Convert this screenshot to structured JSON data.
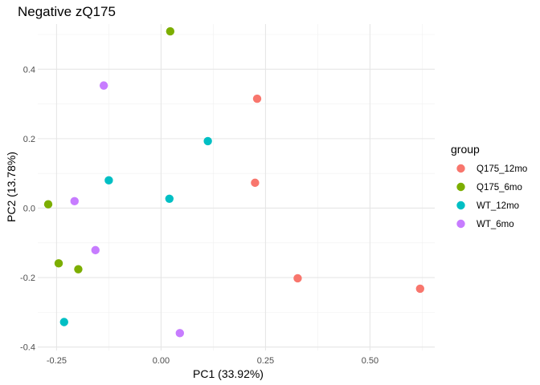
{
  "chart_data": {
    "type": "scatter",
    "title": "Negative zQ175",
    "xlabel": "PC1 (33.92%)",
    "ylabel": "PC2 (13.78%)",
    "xlim": [
      -0.295,
      0.655
    ],
    "ylim": [
      -0.41,
      0.53
    ],
    "x_ticks": [
      -0.25,
      0.0,
      0.25,
      0.5
    ],
    "x_tick_labels": [
      "-0.25",
      "0.00",
      "0.25",
      "0.50"
    ],
    "y_ticks": [
      -0.4,
      -0.2,
      0.0,
      0.2,
      0.4
    ],
    "y_tick_labels": [
      "-0.4",
      "-0.2",
      "0.0",
      "0.2",
      "0.4"
    ],
    "grid": true,
    "legend": {
      "title": "group",
      "placement": "right"
    },
    "series": [
      {
        "name": "Q175_12mo",
        "color": "#F8766D",
        "points": [
          [
            0.23,
            0.315
          ],
          [
            0.225,
            0.073
          ],
          [
            0.327,
            -0.202
          ],
          [
            0.62,
            -0.232
          ]
        ]
      },
      {
        "name": "Q175_6mo",
        "color": "#7CAE00",
        "points": [
          [
            0.022,
            0.509
          ],
          [
            -0.27,
            0.011
          ],
          [
            -0.245,
            -0.159
          ],
          [
            -0.198,
            -0.176
          ]
        ]
      },
      {
        "name": "WT_12mo",
        "color": "#00BFC4",
        "points": [
          [
            0.112,
            0.193
          ],
          [
            -0.125,
            0.08
          ],
          [
            0.02,
            0.027
          ],
          [
            -0.232,
            -0.328
          ]
        ]
      },
      {
        "name": "WT_6mo",
        "color": "#C77CFF",
        "points": [
          [
            -0.137,
            0.353
          ],
          [
            -0.207,
            0.02
          ],
          [
            -0.157,
            -0.121
          ],
          [
            0.045,
            -0.36
          ]
        ]
      }
    ]
  }
}
